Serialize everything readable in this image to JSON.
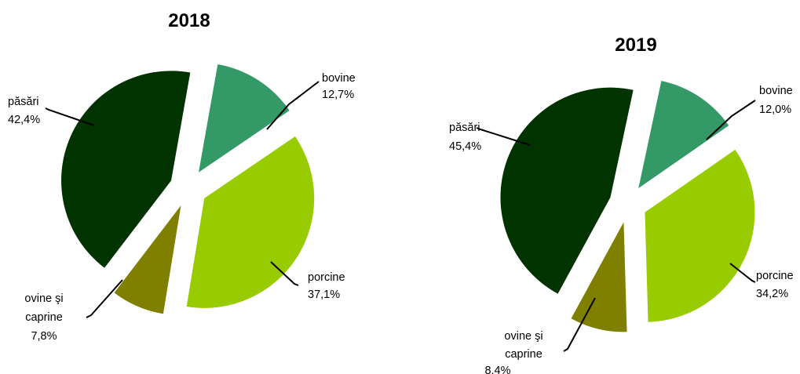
{
  "chart_data": [
    {
      "type": "pie",
      "title": "2018",
      "slices": [
        {
          "label": "bovine",
          "value": 12.7,
          "value_text": "12,7%",
          "color": "#339966"
        },
        {
          "label": "porcine",
          "value": 37.1,
          "value_text": "37,1%",
          "color": "#99CC00"
        },
        {
          "label": "ovine şi caprine",
          "value": 7.8,
          "value_text": "7,8%",
          "color": "#808000"
        },
        {
          "label": "păsări",
          "value": 42.4,
          "value_text": "42,4%",
          "color": "#003300"
        }
      ]
    },
    {
      "type": "pie",
      "title": "2019",
      "slices": [
        {
          "label": "bovine",
          "value": 12.0,
          "value_text": "12,0%",
          "color": "#339966"
        },
        {
          "label": "porcine",
          "value": 34.2,
          "value_text": "34,2%",
          "color": "#99CC00"
        },
        {
          "label": "ovine şi caprine",
          "value": 8.4,
          "value_text": "8.4%",
          "color": "#808000"
        },
        {
          "label": "păsări",
          "value": 45.4,
          "value_text": "45,4%",
          "color": "#003300"
        }
      ]
    }
  ]
}
